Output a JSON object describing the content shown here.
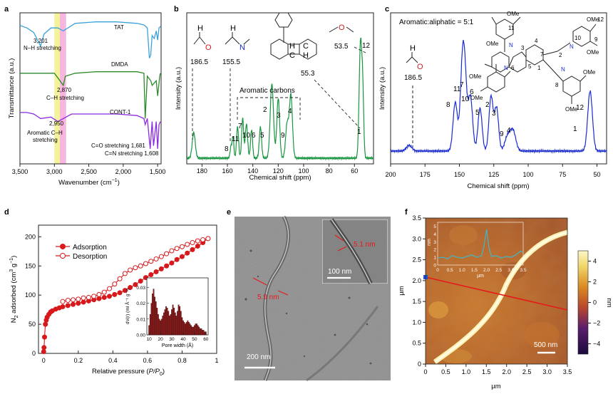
{
  "panels": {
    "a": {
      "label": "a",
      "xlabel": "Wavenumber (cm",
      "xlabel_sup": "−1",
      "xlabel_end": ")",
      "ylabel": "Transmittance (a.u.)",
      "xticks": [
        "3,500",
        "3,000",
        "2,500",
        "2,000",
        "1,500"
      ],
      "series_labels": [
        "TAT",
        "DMDA",
        "CONT-1"
      ],
      "annotations": {
        "nh_value": "3,201",
        "nh_text": "N–H stretching",
        "ch_value": "2,870",
        "ch_text": "C–H stretching",
        "arch_value": "2,950",
        "arch_text1": "Aromatic C–H",
        "arch_text2": "stretching",
        "co_text": "C=O stretching 1,681",
        "cn_text": "C=N stretching 1,608"
      }
    },
    "b": {
      "label": "b",
      "xlabel": "Chemical shift (ppm)",
      "ylabel": "Intensity (a.u.)",
      "xticks": [
        "180",
        "160",
        "140",
        "120",
        "100",
        "80",
        "60"
      ],
      "shift_186": "186.5",
      "shift_155": "155.5",
      "shift_55": "55.3",
      "shift_53": "53.5",
      "aromatic_label": "Aromatic carbons",
      "peak_labels": [
        "12",
        "8",
        "11",
        "7",
        "10",
        "6",
        "5",
        "2",
        "3",
        "9",
        "4",
        "1"
      ]
    },
    "c": {
      "label": "c",
      "xlabel": "Chemical shift (ppm)",
      "ylabel": "Intensity (a.u.)",
      "ratio_text": "Aromatic:aliphatic = 5:1",
      "xticks": [
        "200",
        "175",
        "150",
        "125",
        "100",
        "75",
        "50"
      ],
      "shift_186": "186.5",
      "peak_labels": [
        "8",
        "11",
        "7",
        "10",
        "6",
        "5",
        "2",
        "3",
        "9",
        "4",
        "1",
        "12"
      ],
      "struct_labels": [
        "OMe",
        "OMe",
        "OMe",
        "OMe",
        "OMe",
        "OMe",
        "OMe",
        "OMe",
        "11",
        "12",
        "10",
        "9",
        "4",
        "3",
        "7",
        "5",
        "2",
        "1",
        "6",
        "N",
        "N",
        "N",
        "N",
        "8"
      ]
    },
    "d": {
      "label": "d",
      "xlabel": "Relative pressure (",
      "xlabel_italic": "P/P",
      "xlabel_sub": "0",
      "xlabel_end": ")",
      "ylabel": "N",
      "ylabel_sub": "2",
      "ylabel_rest": " adsorbed (cm",
      "ylabel_sup": "3",
      "ylabel_end": " g",
      "ylabel_sup2": "−1",
      "ylabel_close": ")",
      "legend": [
        "Adsorption",
        "Desorption"
      ],
      "inset_xlabel": "Pore width (Å)",
      "inset_ylabel": "dV(r) (ml Å⁻¹ g⁻¹)",
      "inset_yticks": [
        "0.00",
        "0.01",
        "0.02",
        "0.03"
      ],
      "inset_xticks": [
        "10",
        "20",
        "30",
        "40",
        "50",
        "60"
      ]
    },
    "e": {
      "label": "e",
      "measure_main": "5.9 nm",
      "measure_inset": "5.1 nm",
      "scale_main": "200 nm",
      "scale_inset": "100 nm"
    },
    "f": {
      "label": "f",
      "xlabel": "µm",
      "ylabel": "µm",
      "colorbar_unit": "nm",
      "colorbar_ticks": [
        "4",
        "2",
        "0",
        "−2",
        "−4"
      ],
      "scale": "500 nm",
      "inset_xlabel": "µm",
      "inset_ylabel": "nm",
      "inset_xticks": [
        "0",
        "0.5",
        "1.0",
        "1.5",
        "2.0",
        "2.5",
        "3.0",
        "3.5"
      ],
      "inset_yticks": [
        "0",
        "1",
        "2",
        "3",
        "4",
        "5"
      ],
      "xticks": [
        "0",
        "0.5",
        "1.0",
        "1.5",
        "2.0",
        "2.5",
        "3.0",
        "3.5"
      ],
      "yticks": [
        "0",
        "0.5",
        "1.0",
        "1.5",
        "2.0",
        "2.5",
        "3.0",
        "3.5"
      ]
    }
  },
  "colors": {
    "tat": "#3aa3d9",
    "dmda": "#2c8a2c",
    "cont1": "#8a2be2",
    "nmr_b": "#1a9641",
    "nmr_c": "#1a2bd1",
    "iso": "#d7191c",
    "bar_fill": "#8b1a1a",
    "afm_line": "#e41a1c",
    "afm_profile": "#3fb8c9",
    "highlight_yellow": "#f4f29a",
    "highlight_pink": "#f7b6de"
  },
  "chart_data": [
    {
      "panel": "a",
      "type": "line",
      "xlim": [
        3500,
        1450
      ],
      "series": [
        {
          "name": "TAT",
          "x": [
            3520,
            3400,
            3300,
            3201,
            3150,
            3050,
            2950,
            2870,
            2700,
            2400,
            2100,
            1800,
            1700,
            1650,
            1620,
            1600,
            1580,
            1550,
            1520,
            1500,
            1480,
            1460
          ],
          "y": [
            0.92,
            0.9,
            0.87,
            0.78,
            0.86,
            0.9,
            0.9,
            0.88,
            0.93,
            0.94,
            0.94,
            0.93,
            0.92,
            0.9,
            0.7,
            0.72,
            0.85,
            0.83,
            0.88,
            0.82,
            0.9,
            0.91
          ]
        },
        {
          "name": "DMDA",
          "x": [
            3520,
            3300,
            3000,
            2950,
            2870,
            2840,
            2700,
            2400,
            2100,
            1800,
            1700,
            1681,
            1650,
            1600,
            1580,
            1520,
            1500,
            1470,
            1460
          ],
          "y": [
            0.6,
            0.6,
            0.6,
            0.57,
            0.52,
            0.58,
            0.6,
            0.61,
            0.61,
            0.61,
            0.6,
            0.3,
            0.58,
            0.55,
            0.52,
            0.55,
            0.45,
            0.58,
            0.6
          ]
        },
        {
          "name": "CONT-1",
          "x": [
            3520,
            3400,
            3300,
            3200,
            3050,
            2950,
            2870,
            2750,
            2400,
            2100,
            1800,
            1700,
            1681,
            1650,
            1608,
            1580,
            1560,
            1520,
            1500,
            1480,
            1460
          ],
          "y": [
            0.34,
            0.34,
            0.33,
            0.3,
            0.31,
            0.28,
            0.3,
            0.33,
            0.33,
            0.33,
            0.32,
            0.3,
            0.26,
            0.3,
            0.1,
            0.28,
            0.12,
            0.28,
            0.1,
            0.26,
            0.28
          ]
        }
      ]
    },
    {
      "panel": "b",
      "type": "line",
      "xlim": [
        192,
        45
      ],
      "peaks": [
        {
          "ppm": 186.5,
          "h": 0.18,
          "w": 1.2
        },
        {
          "ppm": 157,
          "h": 0.09,
          "w": 0.8
        },
        {
          "ppm": 155.5,
          "h": 0.14,
          "w": 0.6
        },
        {
          "ppm": 152,
          "h": 0.22,
          "w": 0.8
        },
        {
          "ppm": 148,
          "h": 0.28,
          "w": 0.8
        },
        {
          "ppm": 145,
          "h": 0.24,
          "w": 0.9
        },
        {
          "ppm": 141,
          "h": 0.2,
          "w": 0.8
        },
        {
          "ppm": 134,
          "h": 0.22,
          "w": 0.9
        },
        {
          "ppm": 125,
          "h": 0.52,
          "w": 1.3
        },
        {
          "ppm": 120,
          "h": 0.42,
          "w": 1.1
        },
        {
          "ppm": 113,
          "h": 0.24,
          "w": 1.2
        },
        {
          "ppm": 110,
          "h": 0.44,
          "w": 1.2
        },
        {
          "ppm": 55.3,
          "h": 0.8,
          "w": 1.0
        },
        {
          "ppm": 53.5,
          "h": 0.45,
          "w": 0.8
        }
      ]
    },
    {
      "panel": "c",
      "type": "line",
      "xlim": [
        200,
        43
      ],
      "peaks": [
        {
          "ppm": 186.5,
          "h": 0.04,
          "w": 2.0
        },
        {
          "ppm": 153,
          "h": 0.34,
          "w": 1.6
        },
        {
          "ppm": 148,
          "h": 0.5,
          "w": 1.5
        },
        {
          "ppm": 146,
          "h": 0.46,
          "w": 1.5
        },
        {
          "ppm": 142,
          "h": 0.38,
          "w": 1.6
        },
        {
          "ppm": 135,
          "h": 0.3,
          "w": 1.5
        },
        {
          "ppm": 127,
          "h": 0.38,
          "w": 1.5
        },
        {
          "ppm": 123,
          "h": 0.3,
          "w": 1.5
        },
        {
          "ppm": 115,
          "h": 0.1,
          "w": 2.0
        },
        {
          "ppm": 111,
          "h": 0.14,
          "w": 2.0
        },
        {
          "ppm": 55,
          "h": 0.42,
          "w": 1.7
        }
      ]
    },
    {
      "panel": "d",
      "type": "line",
      "xlabel": "Relative pressure (P/P0)",
      "ylabel": "N2 adsorbed (cm3 g−1)",
      "xlim": [
        -0.03,
        1.0
      ],
      "ylim": [
        0,
        220
      ],
      "xticks": [
        0,
        0.2,
        0.4,
        0.6,
        0.8,
        1.0
      ],
      "yticks": [
        0,
        50,
        100,
        150,
        200
      ],
      "series": [
        {
          "name": "Adsorption",
          "x": [
            0.0,
            0.002,
            0.005,
            0.01,
            0.015,
            0.02,
            0.03,
            0.04,
            0.05,
            0.07,
            0.09,
            0.11,
            0.14,
            0.17,
            0.2,
            0.23,
            0.26,
            0.29,
            0.32,
            0.35,
            0.38,
            0.41,
            0.44,
            0.47,
            0.5,
            0.53,
            0.56,
            0.59,
            0.62,
            0.65,
            0.68,
            0.71,
            0.74,
            0.77,
            0.8,
            0.83,
            0.86,
            0.89,
            0.92,
            0.95
          ],
          "y": [
            3,
            10,
            28,
            50,
            57,
            62,
            67,
            71,
            73,
            76,
            78,
            80,
            82,
            84,
            86,
            88,
            90,
            92,
            94,
            96,
            98,
            101,
            104,
            108,
            113,
            118,
            124,
            130,
            135,
            140,
            145,
            150,
            155,
            161,
            166,
            172,
            178,
            184,
            190,
            197
          ]
        },
        {
          "name": "Desorption",
          "x": [
            0.95,
            0.92,
            0.89,
            0.86,
            0.83,
            0.8,
            0.77,
            0.74,
            0.71,
            0.68,
            0.65,
            0.62,
            0.59,
            0.56,
            0.53,
            0.5,
            0.47,
            0.44,
            0.41,
            0.38,
            0.35,
            0.32,
            0.29,
            0.26,
            0.23,
            0.2,
            0.17,
            0.14,
            0.11
          ],
          "y": [
            197,
            195,
            193,
            190,
            187,
            183,
            180,
            176,
            171,
            166,
            162,
            158,
            154,
            150,
            147,
            143,
            137,
            128,
            119,
            111,
            105,
            101,
            98,
            96,
            95,
            93,
            92,
            91,
            89
          ]
        }
      ],
      "inset": {
        "type": "bar",
        "xlim": [
          8,
          62
        ],
        "ylim": [
          0,
          0.036
        ],
        "x": [
          10,
          11,
          12,
          13,
          14,
          15,
          16,
          17,
          18,
          19,
          20,
          21,
          22,
          23,
          24,
          25,
          26,
          27,
          28,
          29,
          30,
          31,
          32,
          33,
          34,
          35,
          36,
          37,
          38,
          39,
          40,
          41,
          42,
          43,
          44,
          45,
          46,
          47,
          48,
          49,
          50,
          51,
          52,
          53,
          54,
          55,
          56,
          57,
          58,
          59,
          60
        ],
        "values": [
          0.006,
          0.013,
          0.02,
          0.026,
          0.029,
          0.024,
          0.021,
          0.017,
          0.013,
          0.01,
          0.009,
          0.01,
          0.012,
          0.014,
          0.016,
          0.018,
          0.017,
          0.015,
          0.012,
          0.013,
          0.016,
          0.019,
          0.017,
          0.014,
          0.012,
          0.015,
          0.019,
          0.018,
          0.015,
          0.011,
          0.009,
          0.008,
          0.007,
          0.008,
          0.009,
          0.008,
          0.007,
          0.006,
          0.005,
          0.005,
          0.006,
          0.007,
          0.007,
          0.006,
          0.005,
          0.004,
          0.004,
          0.003,
          0.003,
          0.002,
          0.002
        ]
      }
    },
    {
      "panel": "f",
      "type": "line",
      "inset_profile": {
        "x": [
          0,
          0.2,
          0.4,
          0.6,
          0.8,
          1.0,
          1.2,
          1.4,
          1.6,
          1.8,
          1.9,
          2.0,
          2.1,
          2.2,
          2.4,
          2.6,
          2.8,
          3.0,
          3.2,
          3.4,
          3.5
        ],
        "y": [
          0.9,
          1.0,
          0.8,
          1.2,
          1.0,
          0.9,
          1.1,
          1.3,
          1.0,
          1.2,
          2.5,
          4.6,
          2.2,
          1.1,
          1.2,
          0.9,
          1.1,
          1.0,
          1.3,
          1.8,
          1.6
        ]
      },
      "colorbar_range": [
        -5,
        5
      ]
    }
  ]
}
